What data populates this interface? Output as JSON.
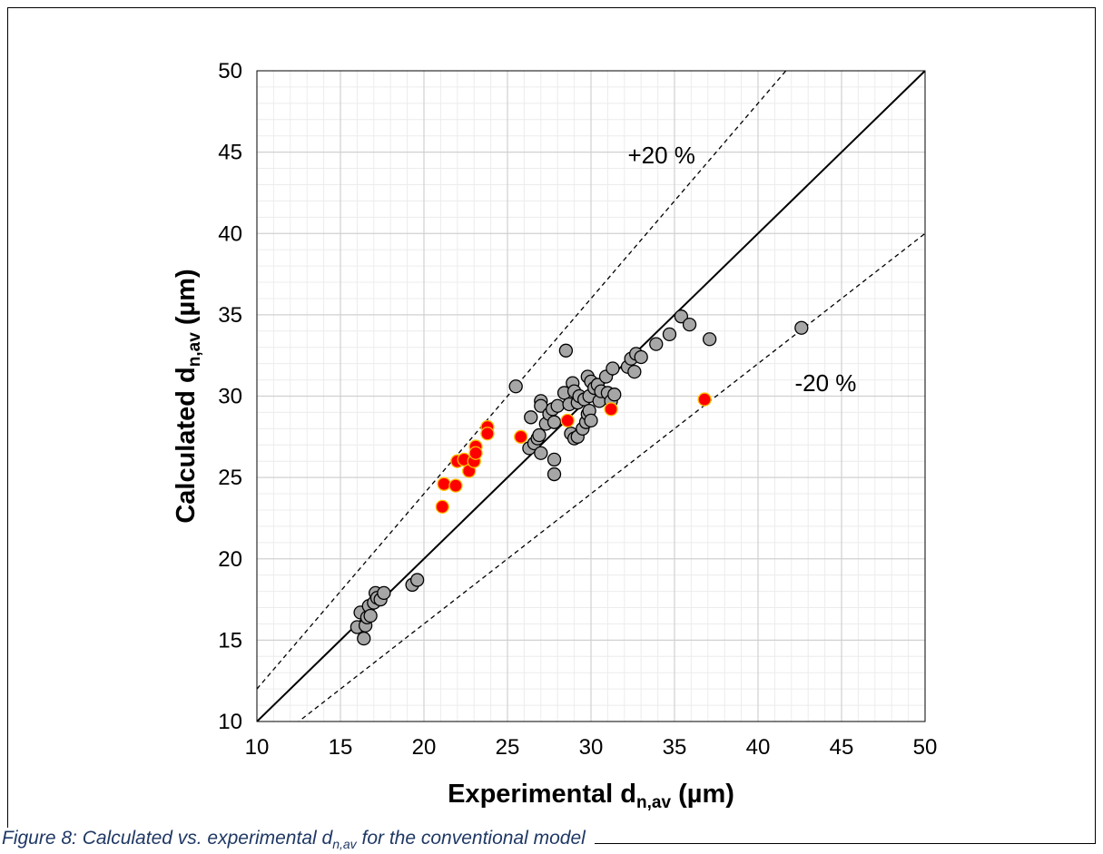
{
  "caption": {
    "text": "Figure 8: Calculated vs. experimental d",
    "subscript": "n,av",
    "suffix": " for the conventional model"
  },
  "chart_data": {
    "type": "scatter",
    "xlabel": "Experimental d",
    "xlabel_sub": "n,av",
    "xlabel_suffix": " (µm)",
    "ylabel": "Calculated d",
    "ylabel_sub": "n,av",
    "ylabel_suffix": " (µm)",
    "xlim": [
      10,
      50
    ],
    "ylim": [
      10,
      50
    ],
    "xticks": [
      "10",
      "15",
      "20",
      "25",
      "30",
      "35",
      "40",
      "45",
      "50"
    ],
    "yticks": [
      "10",
      "15",
      "20",
      "25",
      "30",
      "35",
      "40",
      "45",
      "50"
    ],
    "grid": true,
    "minor_grid": true,
    "reference_lines": [
      {
        "kind": "parity",
        "slope": 1.0,
        "style": "solid"
      },
      {
        "kind": "upper",
        "slope": 1.2,
        "style": "dashed",
        "label": "+20 %"
      },
      {
        "kind": "lower",
        "slope": 0.8,
        "style": "dashed",
        "label": "-20 %"
      }
    ],
    "series": [
      {
        "color": "#a6a6a6",
        "edge": "#000000",
        "points": [
          [
            16.0,
            15.8
          ],
          [
            16.2,
            16.7
          ],
          [
            16.4,
            15.1
          ],
          [
            16.5,
            15.9
          ],
          [
            16.6,
            16.4
          ],
          [
            16.7,
            17.1
          ],
          [
            16.8,
            16.5
          ],
          [
            17.0,
            17.3
          ],
          [
            17.1,
            17.9
          ],
          [
            17.2,
            17.6
          ],
          [
            17.4,
            17.5
          ],
          [
            17.6,
            17.9
          ],
          [
            19.3,
            18.4
          ],
          [
            19.6,
            18.7
          ],
          [
            25.5,
            30.6
          ],
          [
            26.3,
            26.8
          ],
          [
            26.4,
            28.7
          ],
          [
            26.6,
            27.1
          ],
          [
            26.8,
            27.4
          ],
          [
            26.9,
            27.6
          ],
          [
            27.0,
            29.7
          ],
          [
            27.0,
            29.4
          ],
          [
            27.0,
            26.5
          ],
          [
            27.3,
            28.3
          ],
          [
            27.5,
            28.9
          ],
          [
            27.7,
            29.2
          ],
          [
            27.8,
            28.4
          ],
          [
            27.8,
            25.2
          ],
          [
            27.8,
            26.1
          ],
          [
            28.0,
            29.4
          ],
          [
            28.4,
            30.2
          ],
          [
            28.5,
            32.8
          ],
          [
            28.7,
            29.5
          ],
          [
            28.8,
            27.7
          ],
          [
            28.9,
            30.8
          ],
          [
            29.0,
            27.4
          ],
          [
            29.0,
            30.3
          ],
          [
            29.2,
            29.6
          ],
          [
            29.2,
            27.5
          ],
          [
            29.3,
            30.0
          ],
          [
            29.5,
            28.0
          ],
          [
            29.6,
            29.8
          ],
          [
            29.7,
            28.4
          ],
          [
            29.8,
            28.9
          ],
          [
            29.8,
            31.2
          ],
          [
            29.9,
            30.0
          ],
          [
            29.9,
            29.1
          ],
          [
            30.0,
            30.9
          ],
          [
            30.0,
            28.5
          ],
          [
            30.2,
            30.5
          ],
          [
            30.4,
            30.7
          ],
          [
            30.5,
            29.7
          ],
          [
            30.6,
            30.3
          ],
          [
            30.9,
            31.2
          ],
          [
            31.0,
            30.2
          ],
          [
            31.2,
            29.7
          ],
          [
            31.3,
            31.7
          ],
          [
            31.4,
            30.1
          ],
          [
            32.2,
            31.8
          ],
          [
            32.4,
            32.3
          ],
          [
            32.6,
            31.5
          ],
          [
            32.7,
            32.6
          ],
          [
            33.0,
            32.4
          ],
          [
            33.9,
            33.2
          ],
          [
            34.7,
            33.8
          ],
          [
            35.4,
            34.9
          ],
          [
            35.9,
            34.4
          ],
          [
            37.1,
            33.5
          ],
          [
            42.6,
            34.2
          ]
        ]
      },
      {
        "color": "#ff0000",
        "edge": "#ffc000",
        "points": [
          [
            21.1,
            23.2
          ],
          [
            21.2,
            24.6
          ],
          [
            21.9,
            24.5
          ],
          [
            22.0,
            26.0
          ],
          [
            22.4,
            26.1
          ],
          [
            22.7,
            25.4
          ],
          [
            23.0,
            26.0
          ],
          [
            23.1,
            26.9
          ],
          [
            23.1,
            26.5
          ],
          [
            23.8,
            28.1
          ],
          [
            23.8,
            27.7
          ],
          [
            25.8,
            27.5
          ],
          [
            28.6,
            28.5
          ],
          [
            31.2,
            29.2
          ],
          [
            36.8,
            29.8
          ]
        ]
      }
    ]
  }
}
